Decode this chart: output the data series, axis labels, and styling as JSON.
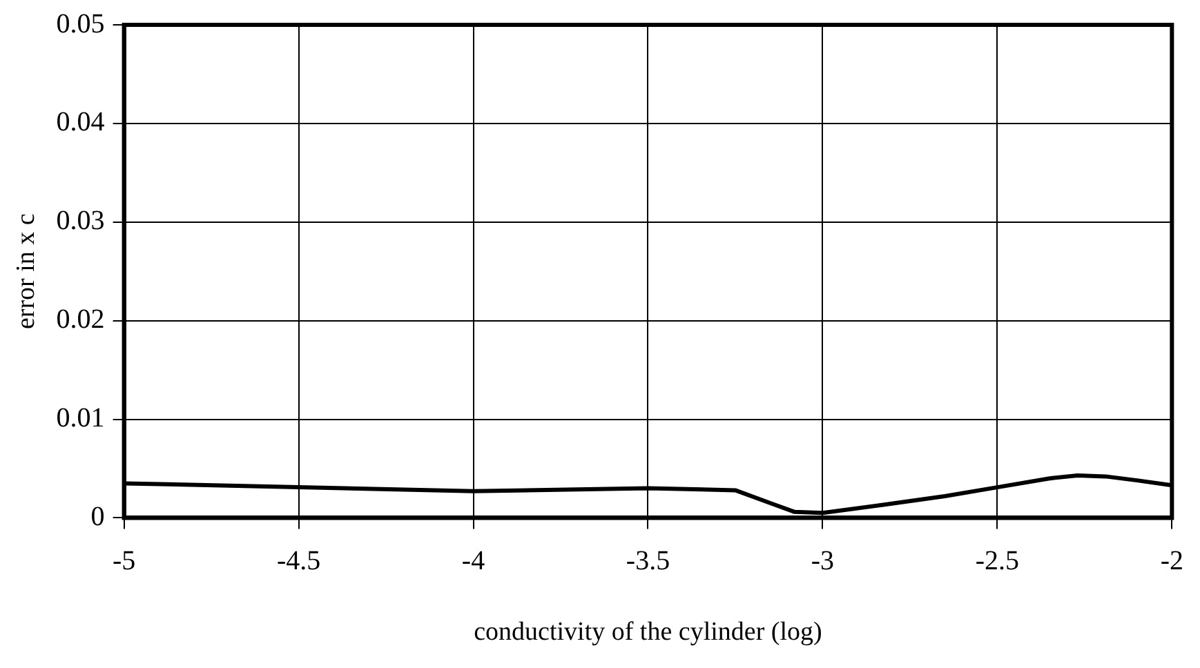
{
  "chart_data": {
    "type": "line",
    "xlabel": "conductivity of the cylinder (log)",
    "ylabel": "error in x c",
    "series": [
      {
        "color": "#000000",
        "x": [
          -5,
          -4.5,
          -4,
          -3.5,
          -3.25,
          -3.15,
          -3.08,
          -3,
          -2.83,
          -2.65,
          -2.5,
          -2.35,
          -2.27,
          -2.19,
          -2.1,
          -2
        ],
        "values": [
          0.0035,
          0.0031,
          0.0027,
          0.003,
          0.0028,
          0.0015,
          0.0006,
          0.0005,
          0.0013,
          0.0022,
          0.0031,
          0.004,
          0.0043,
          0.0042,
          0.0038,
          0.0033
        ]
      }
    ],
    "xlim": [
      -5,
      -2
    ],
    "xticks": [
      -5,
      -4.5,
      -4,
      -3.5,
      -3,
      -2.5,
      -2
    ],
    "ylim": [
      0,
      0.05
    ],
    "yticks": [
      0,
      0.01,
      0.02,
      0.03,
      0.04,
      0.05
    ],
    "grid": true,
    "legend": false,
    "marker": "none",
    "line_style": "solid"
  }
}
